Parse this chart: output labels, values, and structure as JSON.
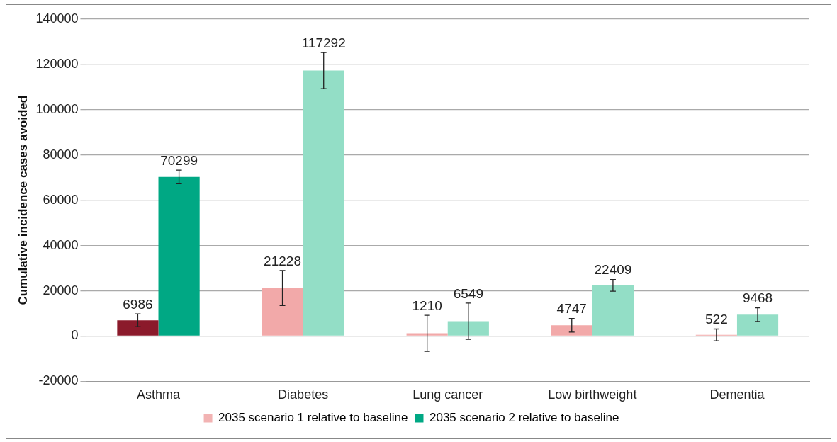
{
  "chart_data": {
    "type": "bar",
    "ylabel": "Cumulative incidence cases avoided",
    "categories": [
      "Asthma",
      "Diabetes",
      "Lung cancer",
      "Low birthweight",
      "Dementia"
    ],
    "series": [
      {
        "name": "2035 scenario 1 relative to baseline",
        "color": "#f2b3b3",
        "colors": [
          "#8b1a2b",
          "#f2a9a9",
          "#f2a9a9",
          "#f2a9a9",
          "#f2a9a9"
        ],
        "values": [
          6986,
          21228,
          1210,
          4747,
          522
        ],
        "errors": [
          2800,
          7700,
          8000,
          3000,
          2600
        ]
      },
      {
        "name": "2035 scenario 2 relative to baseline",
        "color": "#00a884",
        "colors": [
          "#00a884",
          "#93dec6",
          "#93dec6",
          "#93dec6",
          "#93dec6"
        ],
        "values": [
          70299,
          117292,
          6549,
          22409,
          9468
        ],
        "errors": [
          3000,
          8000,
          8000,
          2600,
          3000
        ]
      }
    ],
    "ylim": [
      -20000,
      140000
    ],
    "yticks": [
      -20000,
      0,
      20000,
      40000,
      60000,
      80000,
      100000,
      120000,
      140000
    ],
    "grid": "y",
    "legend": "bottom",
    "data_labels": true
  }
}
